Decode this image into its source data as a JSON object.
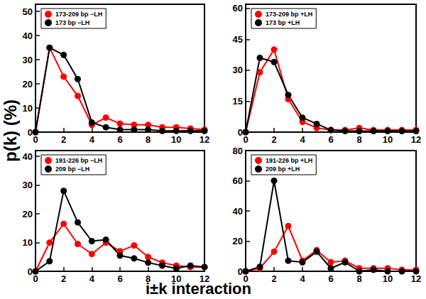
{
  "chart_data": [
    {
      "type": "line",
      "marker": "circle",
      "legend": "upper left",
      "grid": false,
      "x": [
        0,
        1,
        2,
        3,
        4,
        5,
        6,
        7,
        8,
        9,
        10,
        11,
        12
      ],
      "xlim": [
        0,
        12
      ],
      "xticks": [
        0,
        2,
        4,
        6,
        8,
        10,
        12
      ],
      "ylim": [
        0,
        53
      ],
      "yticks": [
        0,
        10,
        20,
        30,
        40,
        50
      ],
      "series": [
        {
          "name": "173-209 bp −LH",
          "color": "#ff0000",
          "values": [
            0,
            35,
            23,
            15,
            3,
            6,
            3.5,
            3,
            3,
            2,
            2,
            1.5,
            1
          ]
        },
        {
          "name": "173 bp −LH",
          "color": "#000000",
          "values": [
            0,
            35,
            32,
            22,
            4,
            2,
            1,
            1,
            1,
            0.5,
            0.5,
            0.5,
            0.5
          ]
        }
      ]
    },
    {
      "type": "line",
      "marker": "circle",
      "legend": "upper left",
      "grid": false,
      "x": [
        0,
        1,
        2,
        3,
        4,
        5,
        6,
        7,
        8,
        9,
        10,
        11,
        12
      ],
      "xlim": [
        0,
        12
      ],
      "xticks": [
        0,
        2,
        4,
        6,
        8,
        10,
        12
      ],
      "ylim": [
        0,
        62
      ],
      "yticks": [
        0,
        15,
        30,
        45,
        60
      ],
      "series": [
        {
          "name": "173-209 bp +LH",
          "color": "#ff0000",
          "values": [
            0,
            29,
            40,
            16,
            5,
            2,
            1,
            1,
            2,
            1,
            1,
            1,
            1
          ]
        },
        {
          "name": "173 bp +LH",
          "color": "#000000",
          "values": [
            0,
            36,
            34,
            18,
            7,
            4,
            1,
            0.5,
            0.5,
            0.5,
            0.5,
            0.5,
            0.5
          ]
        }
      ]
    },
    {
      "type": "line",
      "marker": "circle",
      "legend": "upper left",
      "grid": false,
      "x": [
        0,
        1,
        2,
        3,
        4,
        5,
        6,
        7,
        8,
        9,
        10,
        11,
        12
      ],
      "xlim": [
        0,
        12
      ],
      "xticks": [
        0,
        2,
        4,
        6,
        8,
        10,
        12
      ],
      "ylim": [
        0,
        42
      ],
      "yticks": [
        0,
        10,
        20,
        30,
        40
      ],
      "series": [
        {
          "name": "191-226 bp −LH",
          "color": "#ff0000",
          "values": [
            0,
            10,
            16.5,
            9.5,
            6,
            10,
            7,
            9,
            5,
            3,
            2,
            1.5,
            1.5
          ]
        },
        {
          "name": "209 bp −LH",
          "color": "#000000",
          "values": [
            0,
            3.5,
            28,
            17,
            10.5,
            11,
            5.5,
            4.5,
            3,
            2,
            1,
            2,
            1.5
          ]
        }
      ]
    },
    {
      "type": "line",
      "marker": "circle",
      "legend": "upper left",
      "grid": false,
      "x": [
        0,
        1,
        2,
        3,
        4,
        5,
        6,
        7,
        8,
        9,
        10,
        11,
        12
      ],
      "xlim": [
        0,
        12
      ],
      "xticks": [
        0,
        2,
        4,
        6,
        8,
        10,
        12
      ],
      "ylim": [
        0,
        80
      ],
      "yticks": [
        0,
        20,
        40,
        60,
        80
      ],
      "series": [
        {
          "name": "191-226 bp +LH",
          "color": "#ff0000",
          "values": [
            0,
            2,
            13,
            30,
            7,
            14,
            6,
            7,
            2,
            2,
            2,
            1,
            1
          ]
        },
        {
          "name": "209 bp +LH",
          "color": "#000000",
          "values": [
            0,
            3,
            60,
            7,
            6,
            13,
            2,
            6,
            0,
            1,
            0,
            0,
            0
          ]
        }
      ]
    }
  ],
  "x_label": "i±k interaction",
  "y_label": "p(k) (%)"
}
